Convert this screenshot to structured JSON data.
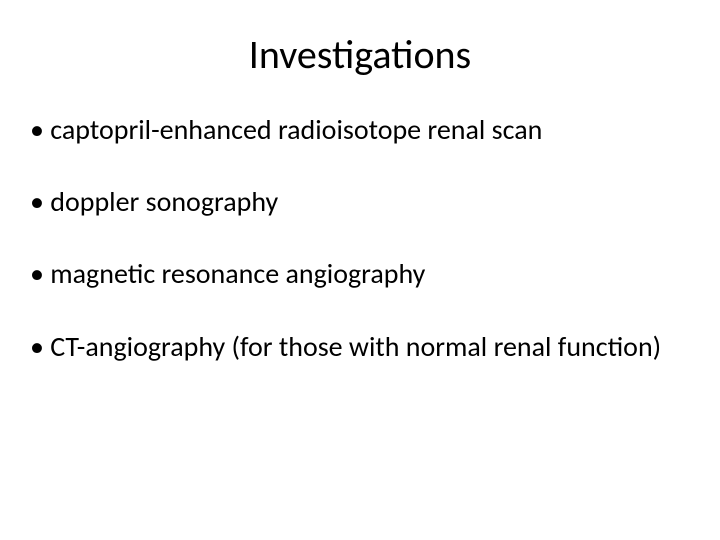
{
  "slide": {
    "title": "Investigations",
    "bullets": [
      "captopril-enhanced radioisotope renal scan",
      "doppler sonography",
      "magnetic resonance angiography",
      "CT-angiography (for those with normal renal function)"
    ],
    "background_color": "#ffffff",
    "text_color": "#000000",
    "title_fontsize": 40,
    "body_fontsize": 28
  }
}
